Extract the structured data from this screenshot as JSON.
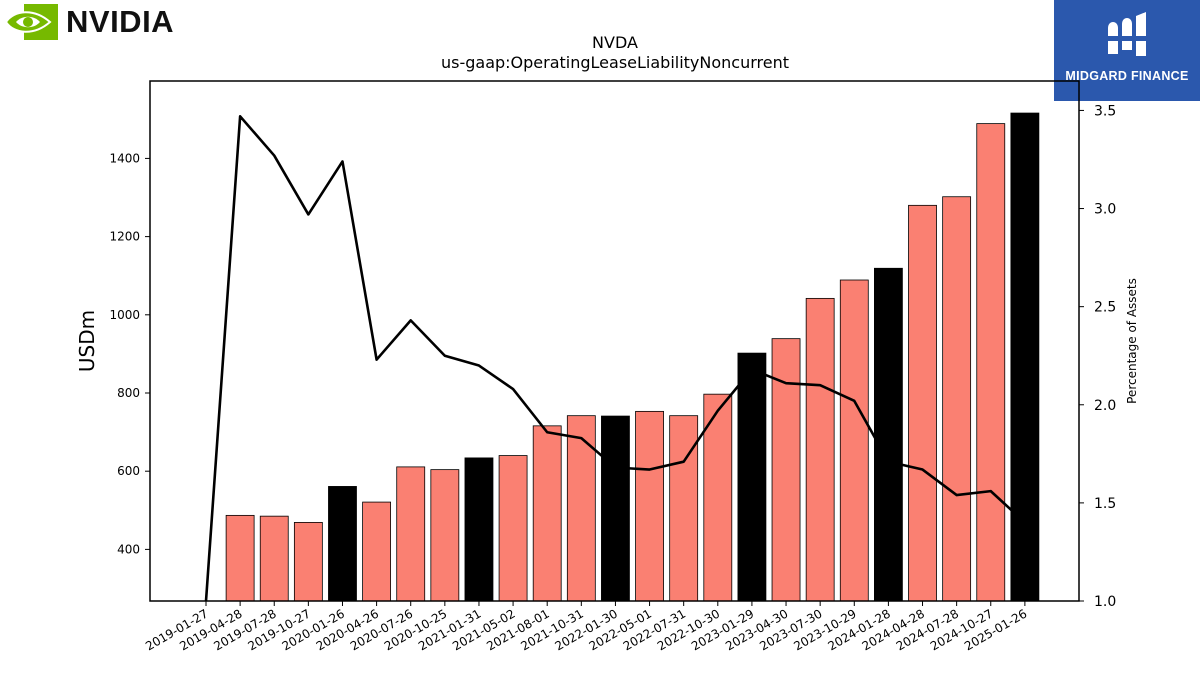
{
  "logo": {
    "brand_text": "NVIDIA",
    "icon": "nvidia-eye-logo",
    "color": "#76b900"
  },
  "badge": {
    "text": "MIDGARD FINANCE",
    "icon": "midgard-logo",
    "color": "#2b58ad"
  },
  "chart_data": {
    "type": "bar",
    "title": "NVDA",
    "subtitle": "us-gaap:OperatingLeaseLiabilityNoncurrent",
    "ylabel": "USDm",
    "y2label": "Percentage of Assets",
    "ylim": [
      268,
      1598
    ],
    "y2lim": [
      1.0,
      3.65
    ],
    "yticks": [
      "400",
      "600",
      "800",
      "1000",
      "1200",
      "1400"
    ],
    "y2ticks": [
      "1.0",
      "1.5",
      "2.0",
      "2.5",
      "3.0",
      "3.5"
    ],
    "bar_color_quarter": "#fa8072",
    "bar_color_fiscal_year_end": "#000000",
    "grid": false,
    "categories": [
      "2019-01-27",
      "2019-04-28",
      "2019-07-28",
      "2019-10-27",
      "2020-01-26",
      "2020-04-26",
      "2020-07-26",
      "2020-10-25",
      "2021-01-31",
      "2021-05-02",
      "2021-08-01",
      "2021-10-31",
      "2022-01-30",
      "2022-05-01",
      "2022-07-31",
      "2022-10-30",
      "2023-01-29",
      "2023-04-30",
      "2023-07-30",
      "2023-10-29",
      "2024-01-28",
      "2024-04-28",
      "2024-07-28",
      "2024-10-27",
      "2025-01-26"
    ],
    "series": [
      {
        "values": [
          null,
          487,
          485,
          469,
          561,
          521,
          611,
          604,
          634,
          640,
          716,
          742,
          741,
          753,
          742,
          797,
          902,
          939,
          1042,
          1089,
          1119,
          1280,
          1302,
          1489,
          1516
        ],
        "fiscal_year_end": [
          false,
          false,
          false,
          false,
          true,
          false,
          false,
          false,
          true,
          false,
          false,
          false,
          true,
          false,
          false,
          false,
          true,
          false,
          false,
          false,
          true,
          false,
          false,
          false,
          true
        ]
      },
      {
        "axis": "right",
        "type": "line",
        "color": "#000000",
        "values": [
          1.0,
          3.47,
          3.27,
          2.97,
          3.24,
          2.23,
          2.43,
          2.25,
          2.2,
          2.08,
          1.86,
          1.83,
          1.68,
          1.67,
          1.71,
          1.97,
          2.18,
          2.11,
          2.1,
          2.02,
          1.71,
          1.67,
          1.54,
          1.56,
          1.4
        ]
      }
    ]
  }
}
